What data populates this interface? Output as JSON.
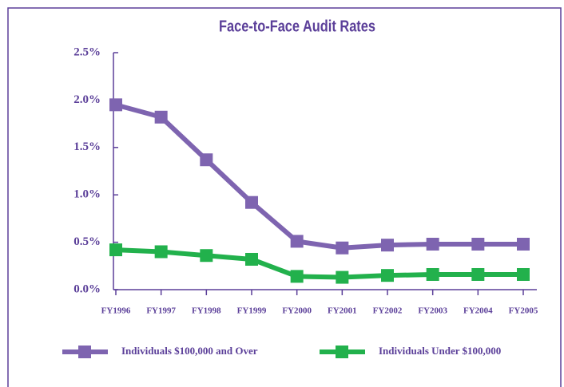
{
  "chart_data": {
    "type": "line",
    "title": "Face-to-Face Audit Rates",
    "categories": [
      "FY1996",
      "FY1997",
      "FY1998",
      "FY1999",
      "FY2000",
      "FY2001",
      "FY2002",
      "FY2003",
      "FY2004",
      "FY2005"
    ],
    "series": [
      {
        "name": "Individuals $100,000 and Over",
        "color": "#7e64b0",
        "values": [
          1.95,
          1.82,
          1.37,
          0.92,
          0.51,
          0.44,
          0.47,
          0.48,
          0.48,
          0.48
        ]
      },
      {
        "name": "Individuals Under $100,000",
        "color": "#22b14c",
        "values": [
          0.42,
          0.4,
          0.36,
          0.32,
          0.14,
          0.13,
          0.15,
          0.16,
          0.16,
          0.16
        ]
      }
    ],
    "ylim": [
      0,
      2.5
    ],
    "yticks": [
      {
        "value": 0,
        "label": "0.0%"
      },
      {
        "value": 0.5,
        "label": "0.5%"
      },
      {
        "value": 1,
        "label": "1.0%"
      },
      {
        "value": 1.5,
        "label": "1.5%"
      },
      {
        "value": 2,
        "label": "2.0%"
      },
      {
        "value": 2.5,
        "label": "2.5%"
      }
    ],
    "legend": "bottom"
  }
}
